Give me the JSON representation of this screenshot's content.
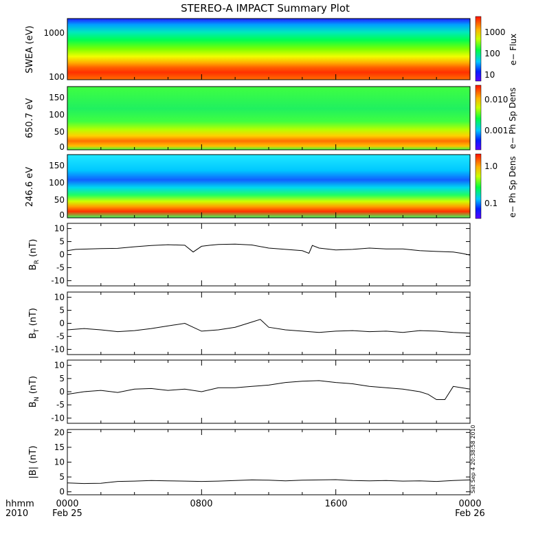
{
  "title": "STEREO-A IMPACT Summary Plot",
  "timestamp_text": "Sat Sep  4 20:38:58 2010",
  "corner_label": {
    "line1": "hhmm",
    "line2": "2010"
  },
  "x_axis": {
    "ticks": [
      "0000",
      "0800",
      "1600",
      "0000"
    ],
    "dates": [
      "Feb 25",
      "Feb 26"
    ]
  },
  "chart_data": [
    {
      "type": "heatmap",
      "ylabel": "SWEA (eV)",
      "yscale": "log",
      "ylim": [
        95,
        2000
      ],
      "yticks": [
        "1000",
        "100"
      ],
      "colorbar_label": "e− Flux",
      "colorbar_scale": "log",
      "colorbar_ticks": [
        "1000",
        "100",
        "10"
      ],
      "description_hint": "energy spectrogram, high flux at low energy"
    },
    {
      "type": "heatmap",
      "ylabel": "650.7 eV",
      "ylim": [
        -8,
        175
      ],
      "yticks": [
        "150",
        "100",
        "50",
        "0"
      ],
      "colorbar_label": "e− Ph Sp Dens",
      "colorbar_scale": "log",
      "colorbar_ticks": [
        "0.010",
        "0.001"
      ]
    },
    {
      "type": "heatmap",
      "ylabel": "246.6 eV",
      "ylim": [
        -8,
        175
      ],
      "yticks": [
        "150",
        "100",
        "50",
        "0"
      ],
      "colorbar_label": "e− Ph Sp Dens",
      "colorbar_scale": "log",
      "colorbar_ticks": [
        "1.0",
        "0.1"
      ]
    },
    {
      "type": "line",
      "ylabel": "B_R (nT)",
      "ylabel_main": "B",
      "ylabel_sub": "R",
      "ylabel_unit": " (nT)",
      "ylim": [
        -12,
        12
      ],
      "yticks": [
        10,
        5,
        0,
        -5,
        -10
      ],
      "x_hours": [
        0,
        0.5,
        1,
        2,
        3,
        4,
        5,
        6,
        7,
        7.5,
        8,
        8.5,
        9,
        10,
        11,
        12,
        13,
        14,
        14.4,
        14.6,
        15,
        16,
        17,
        18,
        19,
        20,
        21,
        22,
        23,
        23.5,
        24
      ],
      "values": [
        1.5,
        2.0,
        2.1,
        2.3,
        2.4,
        3.0,
        3.5,
        3.8,
        3.6,
        1.0,
        3.2,
        3.6,
        3.9,
        4.0,
        3.7,
        2.5,
        2.0,
        1.5,
        0.5,
        3.5,
        2.5,
        1.8,
        2.0,
        2.5,
        2.2,
        2.2,
        1.5,
        1.2,
        1.0,
        0.5,
        -0.2
      ]
    },
    {
      "type": "line",
      "ylabel": "B_T (nT)",
      "ylabel_main": "B",
      "ylabel_sub": "T",
      "ylabel_unit": " (nT)",
      "ylim": [
        -12,
        12
      ],
      "yticks": [
        10,
        5,
        0,
        -5,
        -10
      ],
      "x_hours": [
        0,
        1,
        2,
        3,
        4,
        5,
        6,
        7,
        8,
        9,
        10,
        11,
        11.5,
        12,
        13,
        14,
        15,
        16,
        17,
        18,
        19,
        20,
        21,
        22,
        23,
        24
      ],
      "values": [
        -2.5,
        -2.0,
        -2.5,
        -3.2,
        -2.8,
        -2.0,
        -1.0,
        0.0,
        -3.0,
        -2.5,
        -1.5,
        0.5,
        1.5,
        -1.5,
        -2.5,
        -3.0,
        -3.5,
        -3.0,
        -2.8,
        -3.2,
        -3.0,
        -3.5,
        -2.8,
        -3.0,
        -3.5,
        -3.8
      ]
    },
    {
      "type": "line",
      "ylabel": "B_N (nT)",
      "ylabel_main": "B",
      "ylabel_sub": "N",
      "ylabel_unit": " (nT)",
      "ylim": [
        -12,
        12
      ],
      "yticks": [
        10,
        5,
        0,
        -5,
        -10
      ],
      "x_hours": [
        0,
        1,
        2,
        3,
        4,
        5,
        6,
        7,
        8,
        9,
        10,
        11,
        12,
        13,
        14,
        15,
        16,
        17,
        18,
        19,
        20,
        21,
        21.5,
        22,
        22.5,
        23,
        24
      ],
      "values": [
        -1.0,
        0.0,
        0.5,
        -0.3,
        1.0,
        1.2,
        0.5,
        1.0,
        0.0,
        1.5,
        1.5,
        2.0,
        2.5,
        3.5,
        4.0,
        4.2,
        3.5,
        3.0,
        2.0,
        1.5,
        1.0,
        0.0,
        -1.0,
        -3.0,
        -3.0,
        2.0,
        1.0
      ]
    },
    {
      "type": "line",
      "ylabel": "|B| (nT)",
      "ylabel_main": "|B|",
      "ylabel_sub": "",
      "ylabel_unit": " (nT)",
      "ylim": [
        -1,
        21
      ],
      "yticks": [
        20,
        15,
        10,
        5,
        0
      ],
      "x_hours": [
        0,
        1,
        2,
        3,
        4,
        5,
        6,
        7,
        8,
        9,
        10,
        11,
        12,
        13,
        14,
        15,
        16,
        17,
        18,
        19,
        20,
        21,
        22,
        23,
        24
      ],
      "values": [
        3.0,
        2.8,
        2.9,
        3.5,
        3.6,
        3.8,
        3.7,
        3.6,
        3.5,
        3.6,
        3.8,
        4.0,
        3.9,
        3.7,
        3.9,
        4.0,
        4.1,
        3.8,
        3.7,
        3.8,
        3.6,
        3.7,
        3.5,
        3.8,
        4.0
      ]
    }
  ],
  "colors": {
    "axis": "#000000",
    "line": "#000000"
  }
}
